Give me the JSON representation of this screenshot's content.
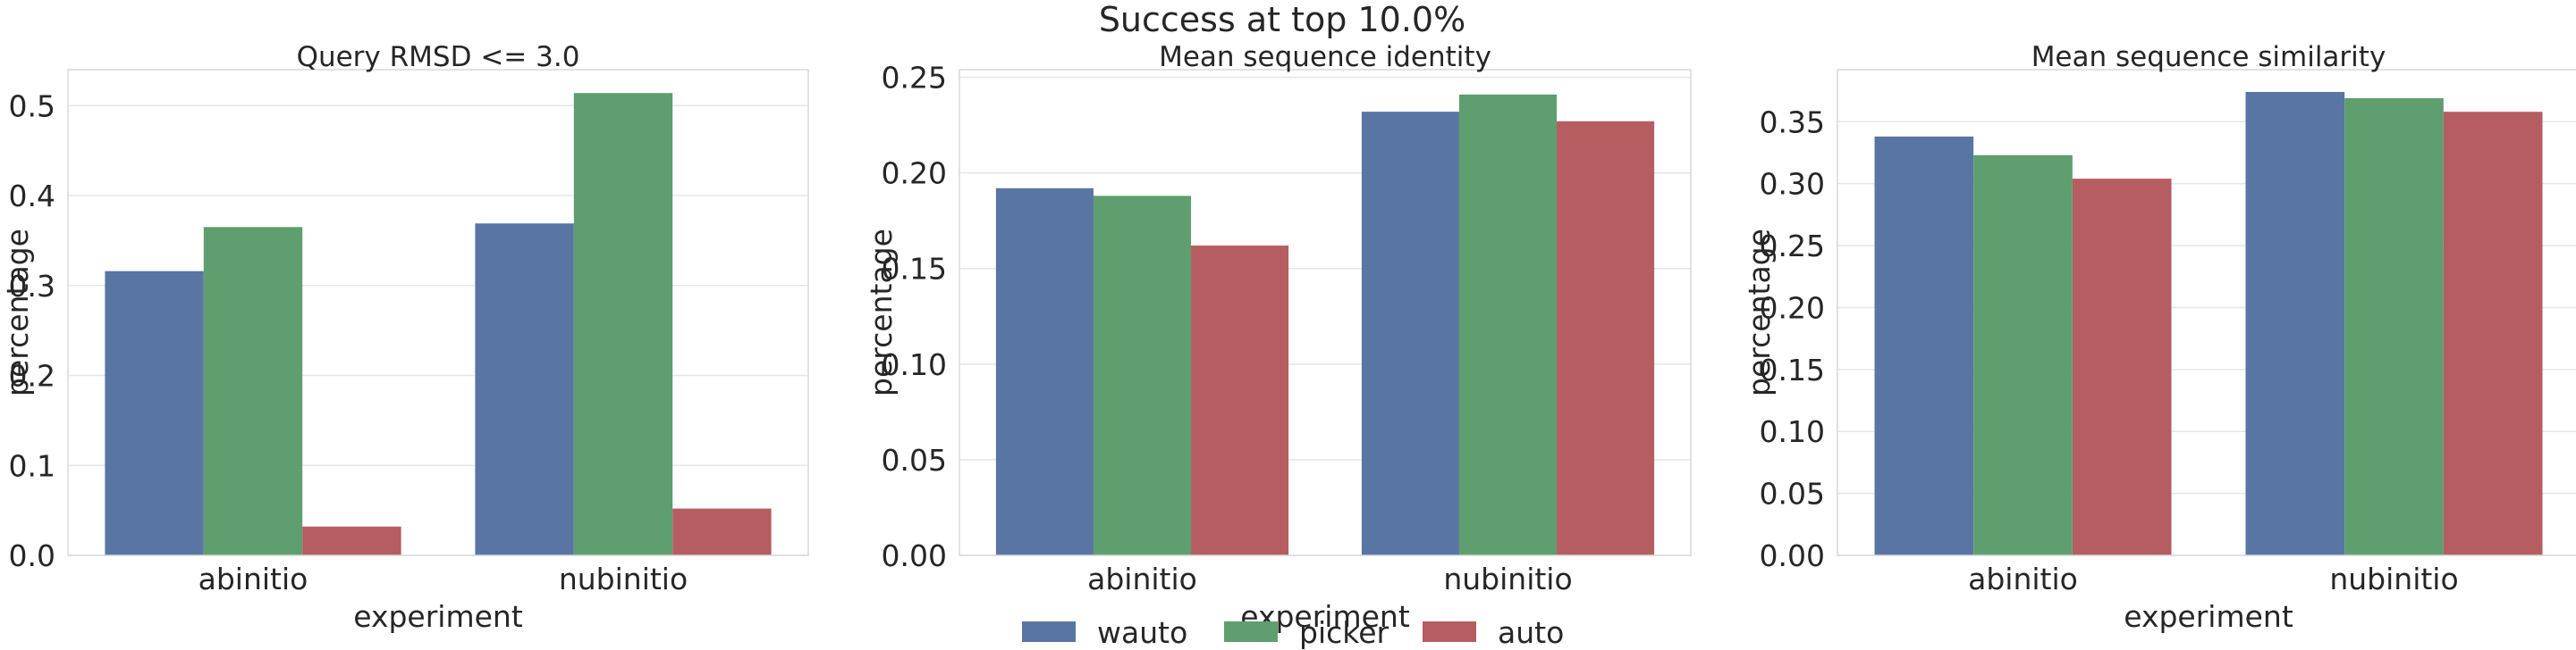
{
  "suptitle": "Success at top 10.0%",
  "legend": {
    "position": "bottom-center",
    "entries": [
      {
        "label": "wauto",
        "color": "#5875a4"
      },
      {
        "label": "picker",
        "color": "#5f9e6e"
      },
      {
        "label": "auto",
        "color": "#b55d60"
      }
    ]
  },
  "chart_data": [
    {
      "type": "bar",
      "title": "Query RMSD <= 3.0",
      "xlabel": "experiment",
      "ylabel": "percentage",
      "categories": [
        "abinitio",
        "nubinitio"
      ],
      "ylim": [
        0,
        0.54
      ],
      "yticks": [
        0.0,
        0.1,
        0.2,
        0.3,
        0.4,
        0.5
      ],
      "ytick_labels": [
        "0.0",
        "0.1",
        "0.2",
        "0.3",
        "0.4",
        "0.5"
      ],
      "grid": true,
      "series": [
        {
          "name": "wauto",
          "color": "#5875a4",
          "values": [
            0.316,
            0.369
          ]
        },
        {
          "name": "picker",
          "color": "#5f9e6e",
          "values": [
            0.365,
            0.514
          ]
        },
        {
          "name": "auto",
          "color": "#b55d60",
          "values": [
            0.032,
            0.052
          ]
        }
      ]
    },
    {
      "type": "bar",
      "title": "Mean sequence identity",
      "xlabel": "experiment",
      "ylabel": "percentage",
      "categories": [
        "abinitio",
        "nubinitio"
      ],
      "ylim": [
        0,
        0.254
      ],
      "yticks": [
        0.0,
        0.05,
        0.1,
        0.15,
        0.2,
        0.25
      ],
      "ytick_labels": [
        "0.00",
        "0.05",
        "0.10",
        "0.15",
        "0.20",
        "0.25"
      ],
      "grid": true,
      "series": [
        {
          "name": "wauto",
          "color": "#5875a4",
          "values": [
            0.192,
            0.232
          ]
        },
        {
          "name": "picker",
          "color": "#5f9e6e",
          "values": [
            0.188,
            0.241
          ]
        },
        {
          "name": "auto",
          "color": "#b55d60",
          "values": [
            0.162,
            0.227
          ]
        }
      ]
    },
    {
      "type": "bar",
      "title": "Mean sequence similarity",
      "xlabel": "experiment",
      "ylabel": "percentage",
      "categories": [
        "abinitio",
        "nubinitio"
      ],
      "ylim": [
        0,
        0.392
      ],
      "yticks": [
        0.0,
        0.05,
        0.1,
        0.15,
        0.2,
        0.25,
        0.3,
        0.35
      ],
      "ytick_labels": [
        "0.00",
        "0.05",
        "0.10",
        "0.15",
        "0.20",
        "0.25",
        "0.30",
        "0.35"
      ],
      "grid": true,
      "series": [
        {
          "name": "wauto",
          "color": "#5875a4",
          "values": [
            0.338,
            0.374
          ]
        },
        {
          "name": "picker",
          "color": "#5f9e6e",
          "values": [
            0.323,
            0.369
          ]
        },
        {
          "name": "auto",
          "color": "#b55d60",
          "values": [
            0.304,
            0.358
          ]
        }
      ]
    }
  ]
}
